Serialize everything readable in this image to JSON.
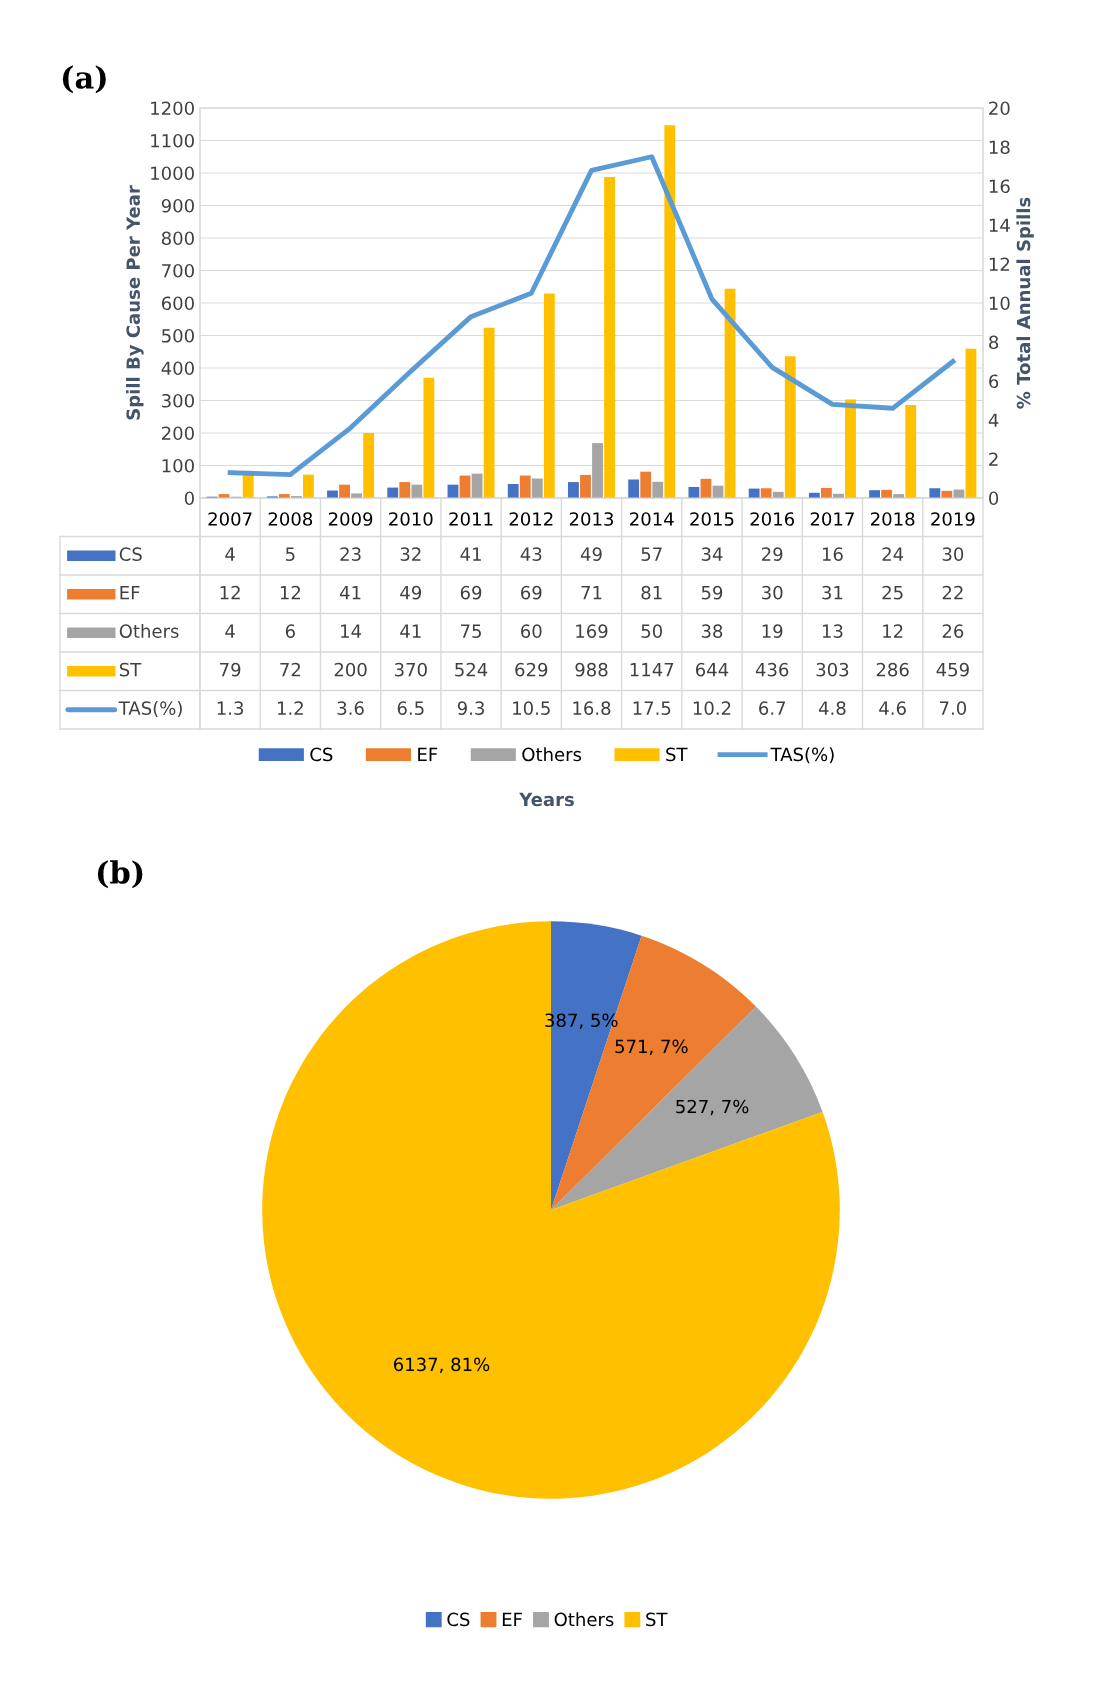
{
  "chart_data": [
    {
      "type": "bar",
      "title": "(a)",
      "xlabel": "Years",
      "ylabel": "Spill By Cause Per Year",
      "y2label": "% Total Annual Spills",
      "categories": [
        "2007",
        "2008",
        "2009",
        "2010",
        "2011",
        "2012",
        "2013",
        "2014",
        "2015",
        "2016",
        "2017",
        "2018",
        "2019"
      ],
      "series": [
        {
          "name": "CS",
          "color": "#4472c4",
          "values": [
            4,
            5,
            23,
            32,
            41,
            43,
            49,
            57,
            34,
            29,
            16,
            24,
            30
          ]
        },
        {
          "name": "EF",
          "color": "#ed7d31",
          "values": [
            12,
            12,
            41,
            49,
            69,
            69,
            71,
            81,
            59,
            30,
            31,
            25,
            22
          ]
        },
        {
          "name": "Others",
          "color": "#a5a5a5",
          "values": [
            4,
            6,
            14,
            41,
            75,
            60,
            169,
            50,
            38,
            19,
            13,
            12,
            26
          ]
        },
        {
          "name": "ST",
          "color": "#ffc000",
          "values": [
            79,
            72,
            200,
            370,
            524,
            629,
            988,
            1147,
            644,
            436,
            303,
            286,
            459
          ]
        },
        {
          "name": "TAS(%)",
          "type": "line",
          "axis": "y2",
          "color": "#5b9bd5",
          "values": [
            1.3,
            1.2,
            3.6,
            6.5,
            9.3,
            10.5,
            16.8,
            17.5,
            10.2,
            6.7,
            4.8,
            4.6,
            7.0
          ],
          "value_labels": [
            "1.3",
            "1.2",
            "3.6",
            "6.5",
            "9.3",
            "10.5",
            "16.8",
            "17.5",
            "10.2",
            "6.7",
            "4.8",
            "4.6",
            "7.0"
          ]
        }
      ],
      "ylim": [
        0,
        1200
      ],
      "yticks": [
        0,
        100,
        200,
        300,
        400,
        500,
        600,
        700,
        800,
        900,
        1000,
        1100,
        1200
      ],
      "y2lim": [
        0,
        20
      ],
      "y2ticks": [
        0,
        2,
        4,
        6,
        8,
        10,
        12,
        14,
        16,
        18,
        20
      ],
      "grid": "y",
      "legend": "bottom",
      "data_labels": true
    },
    {
      "type": "pie",
      "title": "(b)",
      "categories": [
        "CS",
        "EF",
        "Others",
        "ST"
      ],
      "values": [
        387,
        571,
        527,
        6137
      ],
      "colors": [
        "#4472c4",
        "#ed7d31",
        "#a5a5a5",
        "#ffc000"
      ],
      "value_labels": [
        "387, 5%",
        "571, 7%",
        "527, 7%",
        "6137, 81%"
      ],
      "legend": "bottom"
    }
  ]
}
